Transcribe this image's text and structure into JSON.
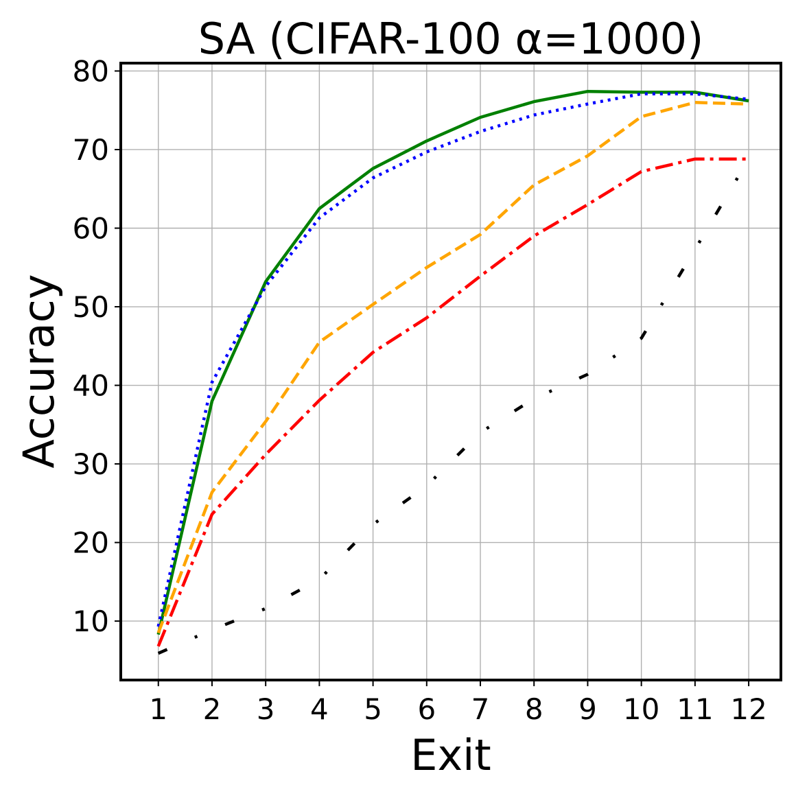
{
  "chart_data": {
    "type": "line",
    "title": "SA (CIFAR-100 α=1000)",
    "xlabel": "Exit",
    "ylabel": "Accuracy",
    "x": [
      1,
      2,
      3,
      4,
      5,
      6,
      7,
      8,
      9,
      10,
      11,
      12
    ],
    "xlim": [
      0.3,
      12.6
    ],
    "ylim": [
      2.5,
      81
    ],
    "yticks": [
      10,
      20,
      30,
      40,
      50,
      60,
      70,
      80
    ],
    "grid": true,
    "series": [
      {
        "color": "#008000",
        "dash": "solid",
        "values": [
          8.3,
          38,
          53.2,
          62.5,
          67.6,
          71.1,
          74.1,
          76.1,
          77.4,
          77.3,
          77.3,
          76.2
        ]
      },
      {
        "color": "#0000ff",
        "dash": "dotted",
        "values": [
          9.3,
          40.4,
          52.6,
          61.3,
          66.4,
          69.7,
          72.3,
          74.4,
          75.8,
          77.1,
          77.1,
          76.4
        ]
      },
      {
        "color": "#ffa500",
        "dash": "dashed",
        "values": [
          8.5,
          26.4,
          35.4,
          45.5,
          50.3,
          55.0,
          59.2,
          65.5,
          69.2,
          74.2,
          76.0,
          75.8
        ]
      },
      {
        "color": "#ff0000",
        "dash": "dashdot",
        "values": [
          6.8,
          23.6,
          31.2,
          38.1,
          44.2,
          48.6,
          53.9,
          59.0,
          63.0,
          67.2,
          68.8,
          68.8
        ]
      },
      {
        "color": "#000000",
        "dash": "loose-dashdot",
        "values": [
          5.9,
          8.9,
          11.6,
          15.3,
          22.3,
          27.2,
          34.0,
          38.3,
          41.4,
          46.0,
          57.3,
          68.8
        ]
      }
    ]
  }
}
